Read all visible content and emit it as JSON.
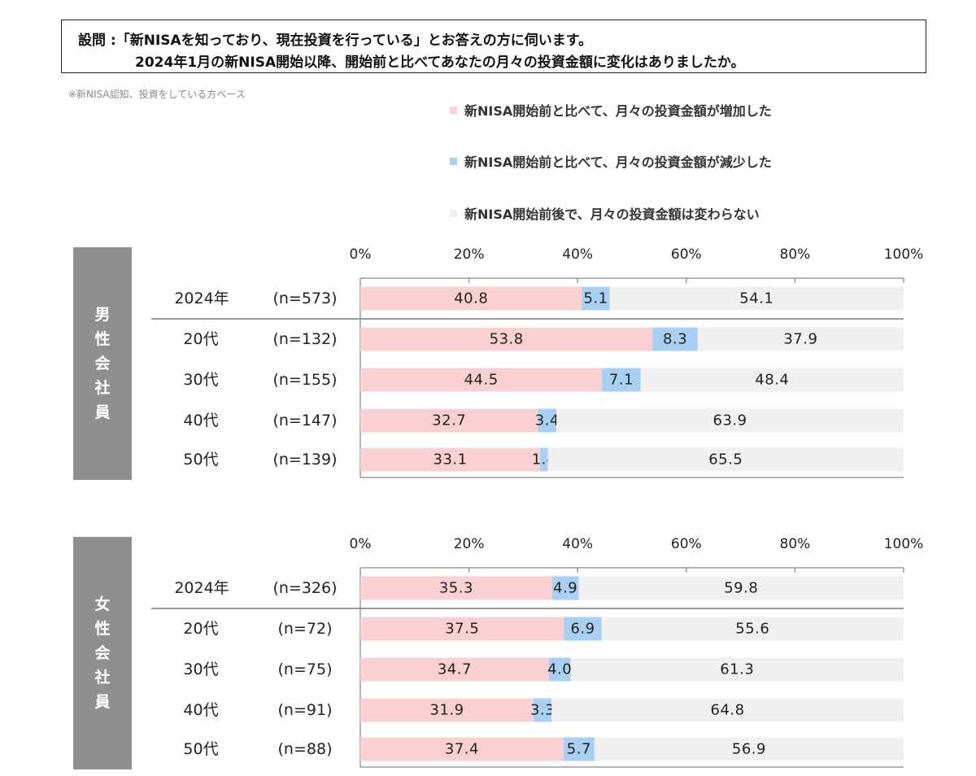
{
  "question": {
    "line1": "設問 :「新NISAを知っており、現在投資を行っている」とお答えの方に伺います。",
    "line2": "2024年1月の新NISA開始以降、開始前と比べてあなたの月々の投資金額に変化はありましたか。"
  },
  "note": "※新NISA認知、投資をしている方ベース",
  "colors": {
    "increased": "#fbd0d3",
    "decreased": "#a9d0f2",
    "unchanged": "#f0f0f0",
    "side_panel": "#8f8f8f"
  },
  "chart_data": [
    {
      "type": "bar",
      "orientation": "horizontal",
      "stacked": true,
      "group_label": "男性会社員",
      "x_ticks": [
        "0%",
        "20%",
        "40%",
        "60%",
        "80%",
        "100%"
      ],
      "xlim": [
        0,
        100
      ],
      "categories": [
        "2024年",
        "20代",
        "30代",
        "40代",
        "50代"
      ],
      "sample_sizes": [
        "(n=573)",
        "(n=132)",
        "(n=155)",
        "(n=147)",
        "(n=139)"
      ],
      "series": [
        {
          "name": "新NISA開始前と比べて、月々の投資金額が増加した",
          "values": [
            40.8,
            53.8,
            44.5,
            32.7,
            33.1
          ]
        },
        {
          "name": "新NISA開始前と比べて、月々の投資金額が減少した",
          "values": [
            5.1,
            8.3,
            7.1,
            3.4,
            1.4
          ]
        },
        {
          "name": "新NISA開始前後で、月々の投資金額は変わらない",
          "values": [
            54.1,
            37.9,
            48.4,
            63.9,
            65.5
          ]
        }
      ]
    },
    {
      "type": "bar",
      "orientation": "horizontal",
      "stacked": true,
      "group_label": "女性会社員",
      "x_ticks": [
        "0%",
        "20%",
        "40%",
        "60%",
        "80%",
        "100%"
      ],
      "xlim": [
        0,
        100
      ],
      "categories": [
        "2024年",
        "20代",
        "30代",
        "40代",
        "50代"
      ],
      "sample_sizes": [
        "(n=326)",
        "(n=72)",
        "(n=75)",
        "(n=91)",
        "(n=88)"
      ],
      "series": [
        {
          "name": "新NISA開始前と比べて、月々の投資金額が増加した",
          "values": [
            35.3,
            37.5,
            34.7,
            31.9,
            37.4
          ]
        },
        {
          "name": "新NISA開始前と比べて、月々の投資金額が減少した",
          "values": [
            4.9,
            6.9,
            4.0,
            3.3,
            5.7
          ]
        },
        {
          "name": "新NISA開始前後で、月々の投資金額は変わらない",
          "values": [
            59.8,
            55.6,
            61.3,
            64.8,
            56.9
          ]
        }
      ]
    }
  ]
}
